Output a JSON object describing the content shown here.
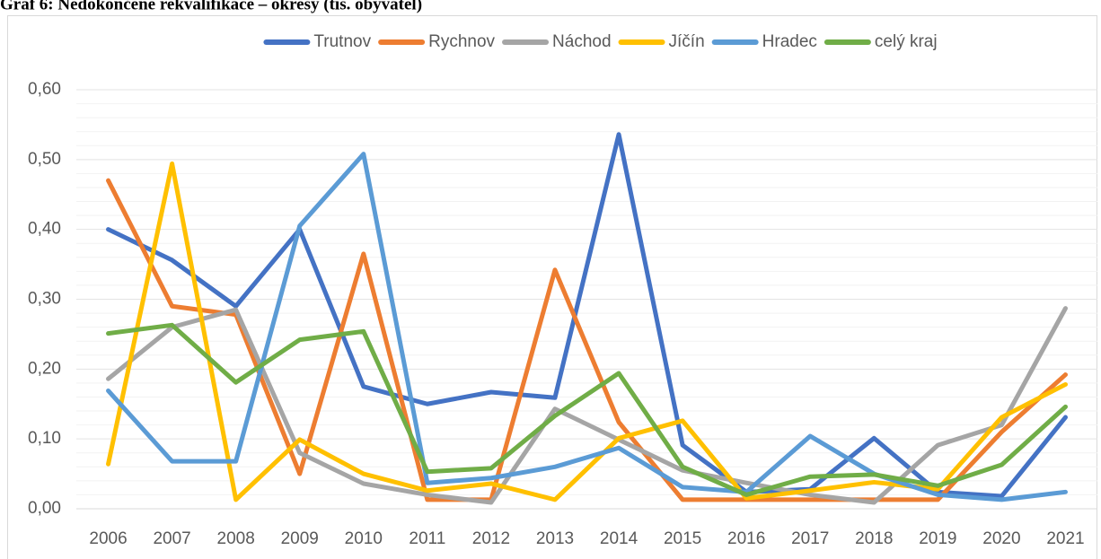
{
  "chart_data": {
    "type": "line",
    "title": "Graf 6: Nedokončené rekvalifikace – okresy (tis. obyvatel)",
    "categories": [
      2006,
      2007,
      2008,
      2009,
      2010,
      2011,
      2012,
      2013,
      2014,
      2015,
      2016,
      2017,
      2018,
      2019,
      2020,
      2021
    ],
    "series": [
      {
        "name": "Trutnov",
        "color": "#4472c4",
        "values": [
          0.4,
          0.356,
          0.29,
          0.4,
          0.175,
          0.15,
          0.167,
          0.159,
          0.536,
          0.091,
          0.024,
          0.028,
          0.101,
          0.024,
          0.018,
          0.131
        ]
      },
      {
        "name": "Rychnov",
        "color": "#ed7d31",
        "values": [
          0.47,
          0.29,
          0.278,
          0.05,
          0.365,
          0.013,
          0.013,
          0.342,
          0.124,
          0.013,
          0.013,
          0.013,
          0.013,
          0.013,
          0.11,
          0.192
        ]
      },
      {
        "name": "Náchod",
        "color": "#a5a5a5",
        "values": [
          0.186,
          0.26,
          0.285,
          0.08,
          0.036,
          0.02,
          0.009,
          0.143,
          0.099,
          0.055,
          0.037,
          0.02,
          0.009,
          0.091,
          0.12,
          0.287
        ]
      },
      {
        "name": "Jíčín",
        "color": "#ffc000",
        "values": [
          0.064,
          0.494,
          0.013,
          0.099,
          0.05,
          0.026,
          0.036,
          0.013,
          0.101,
          0.126,
          0.015,
          0.026,
          0.038,
          0.028,
          0.131,
          0.178
        ]
      },
      {
        "name": "Hradec",
        "color": "#5b9bd5",
        "values": [
          0.169,
          0.068,
          0.068,
          0.405,
          0.508,
          0.037,
          0.044,
          0.06,
          0.087,
          0.031,
          0.024,
          0.104,
          0.05,
          0.02,
          0.013,
          0.024
        ]
      },
      {
        "name": "celý kraj",
        "color": "#70ad47",
        "values": [
          0.251,
          0.263,
          0.181,
          0.242,
          0.254,
          0.053,
          0.058,
          0.133,
          0.194,
          0.06,
          0.02,
          0.046,
          0.049,
          0.033,
          0.063,
          0.146
        ]
      }
    ],
    "ylim": [
      0,
      0.6
    ],
    "yticks": [
      {
        "value": 0,
        "label": "0,00"
      },
      {
        "value": 0.1,
        "label": "0,10"
      },
      {
        "value": 0.2,
        "label": "0,20"
      },
      {
        "value": 0.3,
        "label": "0,30"
      },
      {
        "value": 0.4,
        "label": "0,40"
      },
      {
        "value": 0.5,
        "label": "0,50"
      },
      {
        "value": 0.6,
        "label": "0,60"
      }
    ],
    "grid": true,
    "legend": "top"
  }
}
